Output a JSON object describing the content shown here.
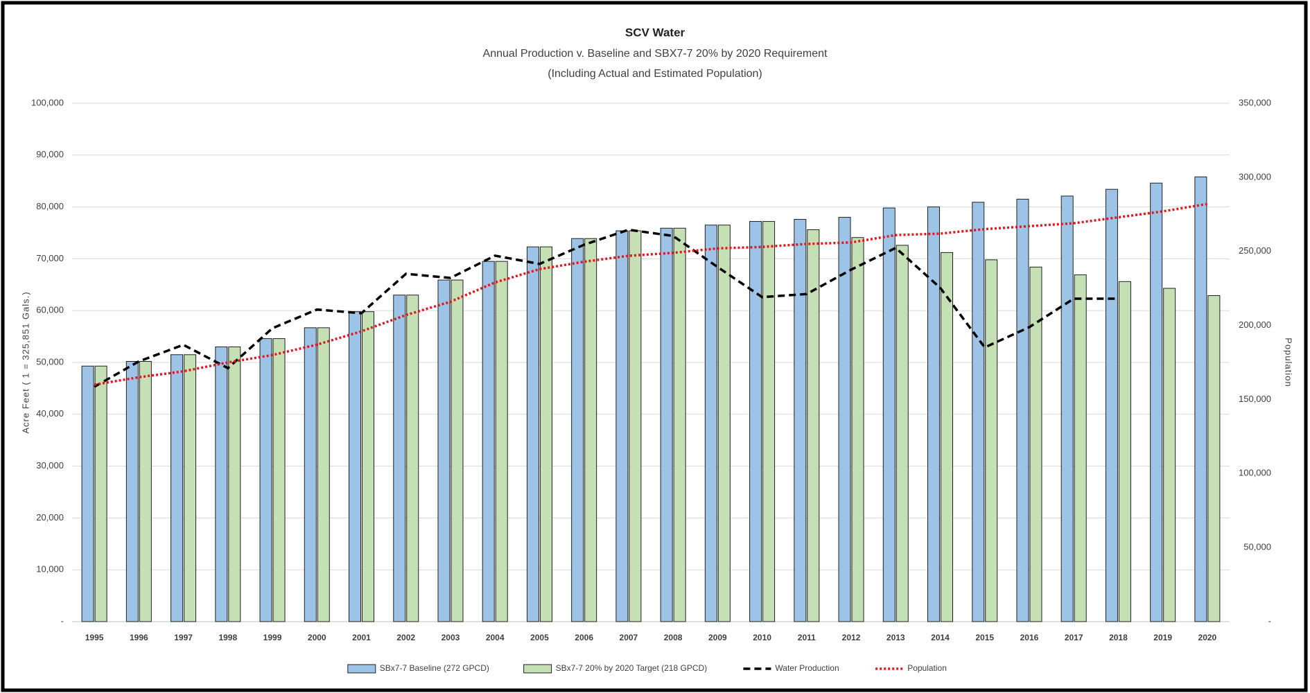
{
  "chart_data": {
    "type": "bar",
    "title": "SCV Water",
    "subtitle": [
      "Annual Production  v. Baseline and SBX7-7 20% by 2020 Requirement",
      "(Including Actual and Estimated Population)"
    ],
    "ylabel": "Acre Feet ( 1 = 325,851 Gals.)",
    "y2label": "Population",
    "categories": [
      "1995",
      "1996",
      "1997",
      "1998",
      "1999",
      "2000",
      "2001",
      "2002",
      "2003",
      "2004",
      "2005",
      "2006",
      "2007",
      "2008",
      "2009",
      "2010",
      "2011",
      "2012",
      "2013",
      "2014",
      "2015",
      "2016",
      "2017",
      "2018",
      "2019",
      "2020"
    ],
    "series": [
      {
        "name": "SBx7-7 Baseline (272 GPCD)",
        "type": "bar",
        "color": "#9dc3e6",
        "values": [
          49300,
          50200,
          51500,
          53000,
          54600,
          56700,
          59800,
          63000,
          65900,
          69500,
          72300,
          73900,
          75400,
          75900,
          76500,
          77200,
          77600,
          78000,
          79800,
          80000,
          80900,
          81500,
          82100,
          83400,
          84600,
          85800
        ]
      },
      {
        "name": "SBx7-7 20% by 2020 Target (218 GPCD)",
        "type": "bar",
        "color": "#c5e0b4",
        "values": [
          49300,
          50200,
          51500,
          53000,
          54600,
          56700,
          59800,
          63000,
          65900,
          69500,
          72300,
          73900,
          75400,
          75900,
          76500,
          77200,
          75600,
          74100,
          72600,
          71200,
          69800,
          68400,
          66900,
          65600,
          64300,
          62900
        ]
      },
      {
        "name": "Water Production",
        "type": "line",
        "style": "dashed",
        "color": "#000000",
        "values": [
          45300,
          50200,
          53400,
          48900,
          56600,
          60200,
          59500,
          67100,
          66300,
          70600,
          69000,
          72700,
          75600,
          74400,
          68400,
          62600,
          63200,
          67900,
          72100,
          64400,
          52900,
          56800,
          62300,
          62300,
          null,
          null
        ]
      },
      {
        "name": "Population",
        "type": "line",
        "style": "dotted",
        "color": "#e8141c",
        "axis": "y2",
        "values": [
          160000,
          165000,
          169000,
          175000,
          180000,
          187000,
          196000,
          207000,
          216000,
          229000,
          238000,
          243000,
          247000,
          249000,
          252000,
          253000,
          255000,
          256000,
          261000,
          262000,
          265000,
          267000,
          269000,
          273000,
          277000,
          282000
        ]
      }
    ],
    "ylim": [
      0,
      100000
    ],
    "yticks": [
      {
        "value": 0,
        "label": "-"
      },
      {
        "value": 10000,
        "label": "10,000"
      },
      {
        "value": 20000,
        "label": "20,000"
      },
      {
        "value": 30000,
        "label": "30,000"
      },
      {
        "value": 40000,
        "label": "40,000"
      },
      {
        "value": 50000,
        "label": "50,000"
      },
      {
        "value": 60000,
        "label": "60,000"
      },
      {
        "value": 70000,
        "label": "70,000"
      },
      {
        "value": 80000,
        "label": "80,000"
      },
      {
        "value": 90000,
        "label": "90,000"
      },
      {
        "value": 100000,
        "label": "100,000"
      }
    ],
    "y2lim": [
      0,
      350000
    ],
    "y2ticks": [
      {
        "value": 0,
        "label": "-"
      },
      {
        "value": 50000,
        "label": "50,000"
      },
      {
        "value": 100000,
        "label": "100,000"
      },
      {
        "value": 150000,
        "label": "150,000"
      },
      {
        "value": 200000,
        "label": "200,000"
      },
      {
        "value": 250000,
        "label": "250,000"
      },
      {
        "value": 300000,
        "label": "300,000"
      },
      {
        "value": 350000,
        "label": "350,000"
      }
    ],
    "grid": true,
    "legend": "bottom"
  }
}
